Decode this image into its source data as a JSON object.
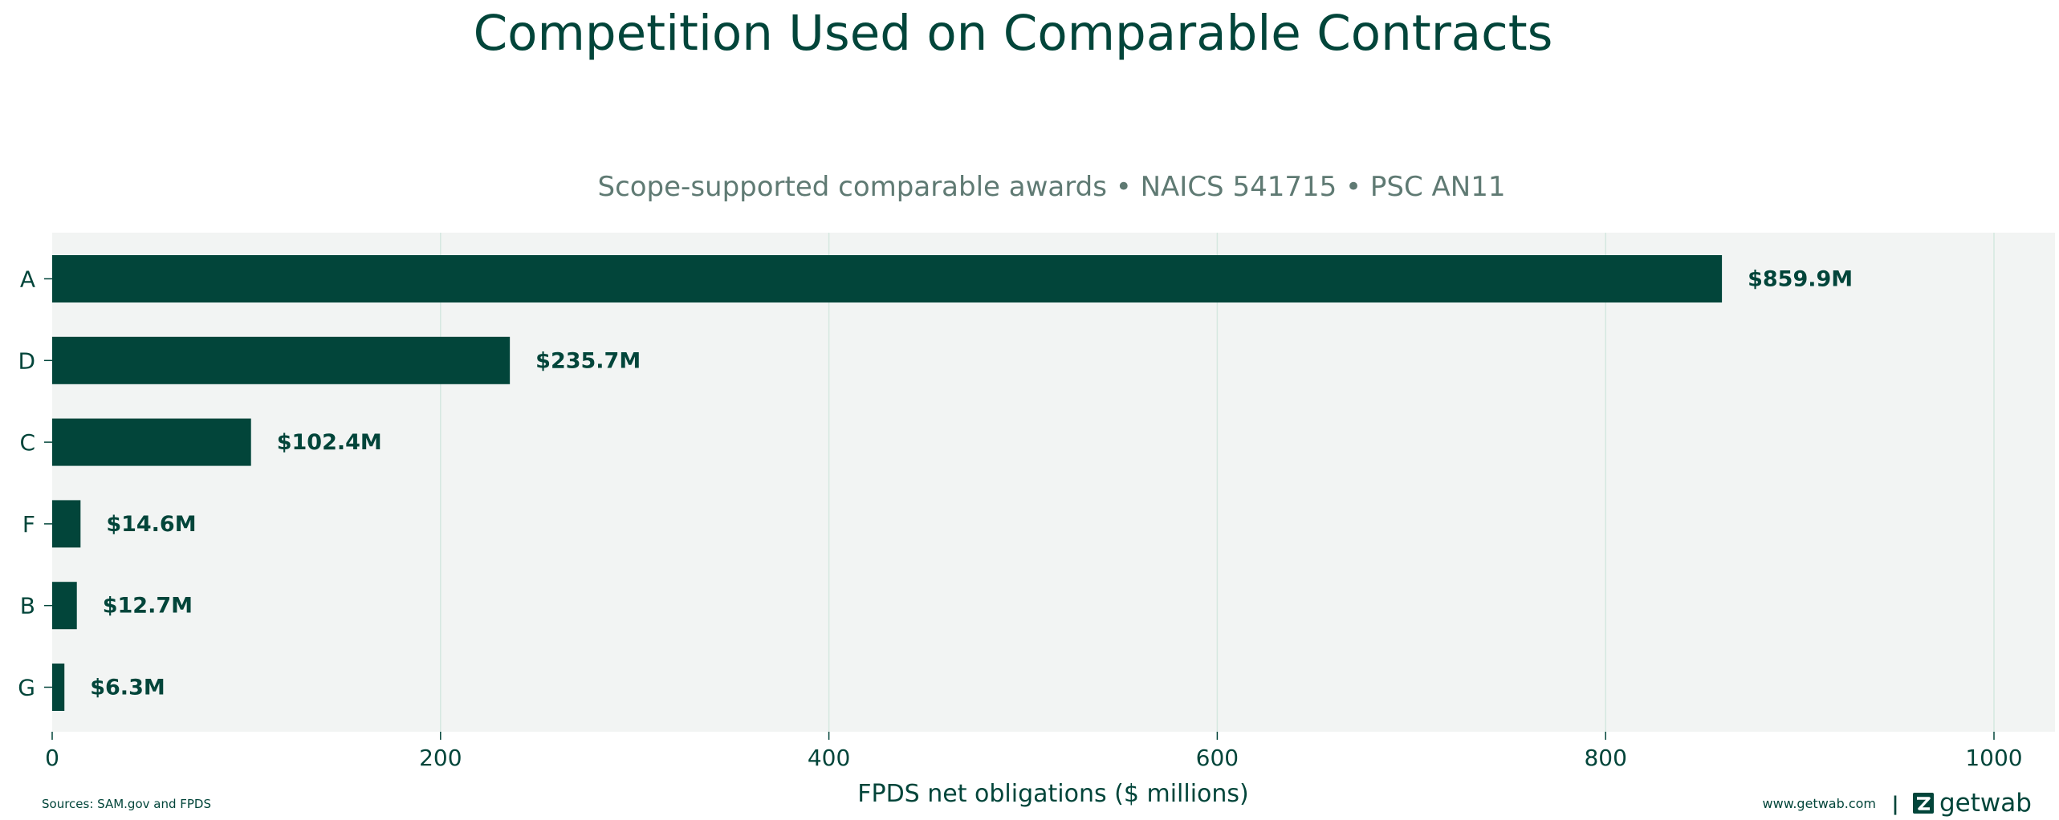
{
  "chart_data": {
    "type": "bar",
    "orientation": "horizontal",
    "title": "Competition Used on Comparable Contracts",
    "subtitle": "Scope-supported comparable awards • NAICS 541715 • PSC AN11",
    "xlabel": "FPDS net obligations ($ millions)",
    "ylabel": "",
    "categories": [
      "A",
      "D",
      "C",
      "F",
      "B",
      "G"
    ],
    "values": [
      859.9,
      235.7,
      102.4,
      14.6,
      12.7,
      6.3
    ],
    "data_labels": [
      "$859.9M",
      "$235.7M",
      "$102.4M",
      "$14.6M",
      "$12.7M",
      "$6.3M"
    ],
    "xlim": [
      0,
      1000
    ],
    "xticks": [
      0,
      200,
      400,
      600,
      800,
      1000
    ],
    "xtick_labels": [
      "0",
      "200",
      "400",
      "600",
      "800",
      "1000"
    ],
    "grid": "vertical",
    "legend": "none"
  },
  "footer": {
    "source": "Sources: SAM.gov and FPDS",
    "website": "www.getwab.com",
    "separator": "|",
    "brand": "getwab"
  },
  "colors": {
    "bar": "#02453a",
    "text": "#02453a",
    "subtitle": "#5f7a73",
    "plot_bg": "#f2f4f3",
    "grid": "#d5e8e0",
    "page_bg": "#ffffff"
  },
  "icons": {
    "brand_logo": "getwab-logo-icon"
  }
}
